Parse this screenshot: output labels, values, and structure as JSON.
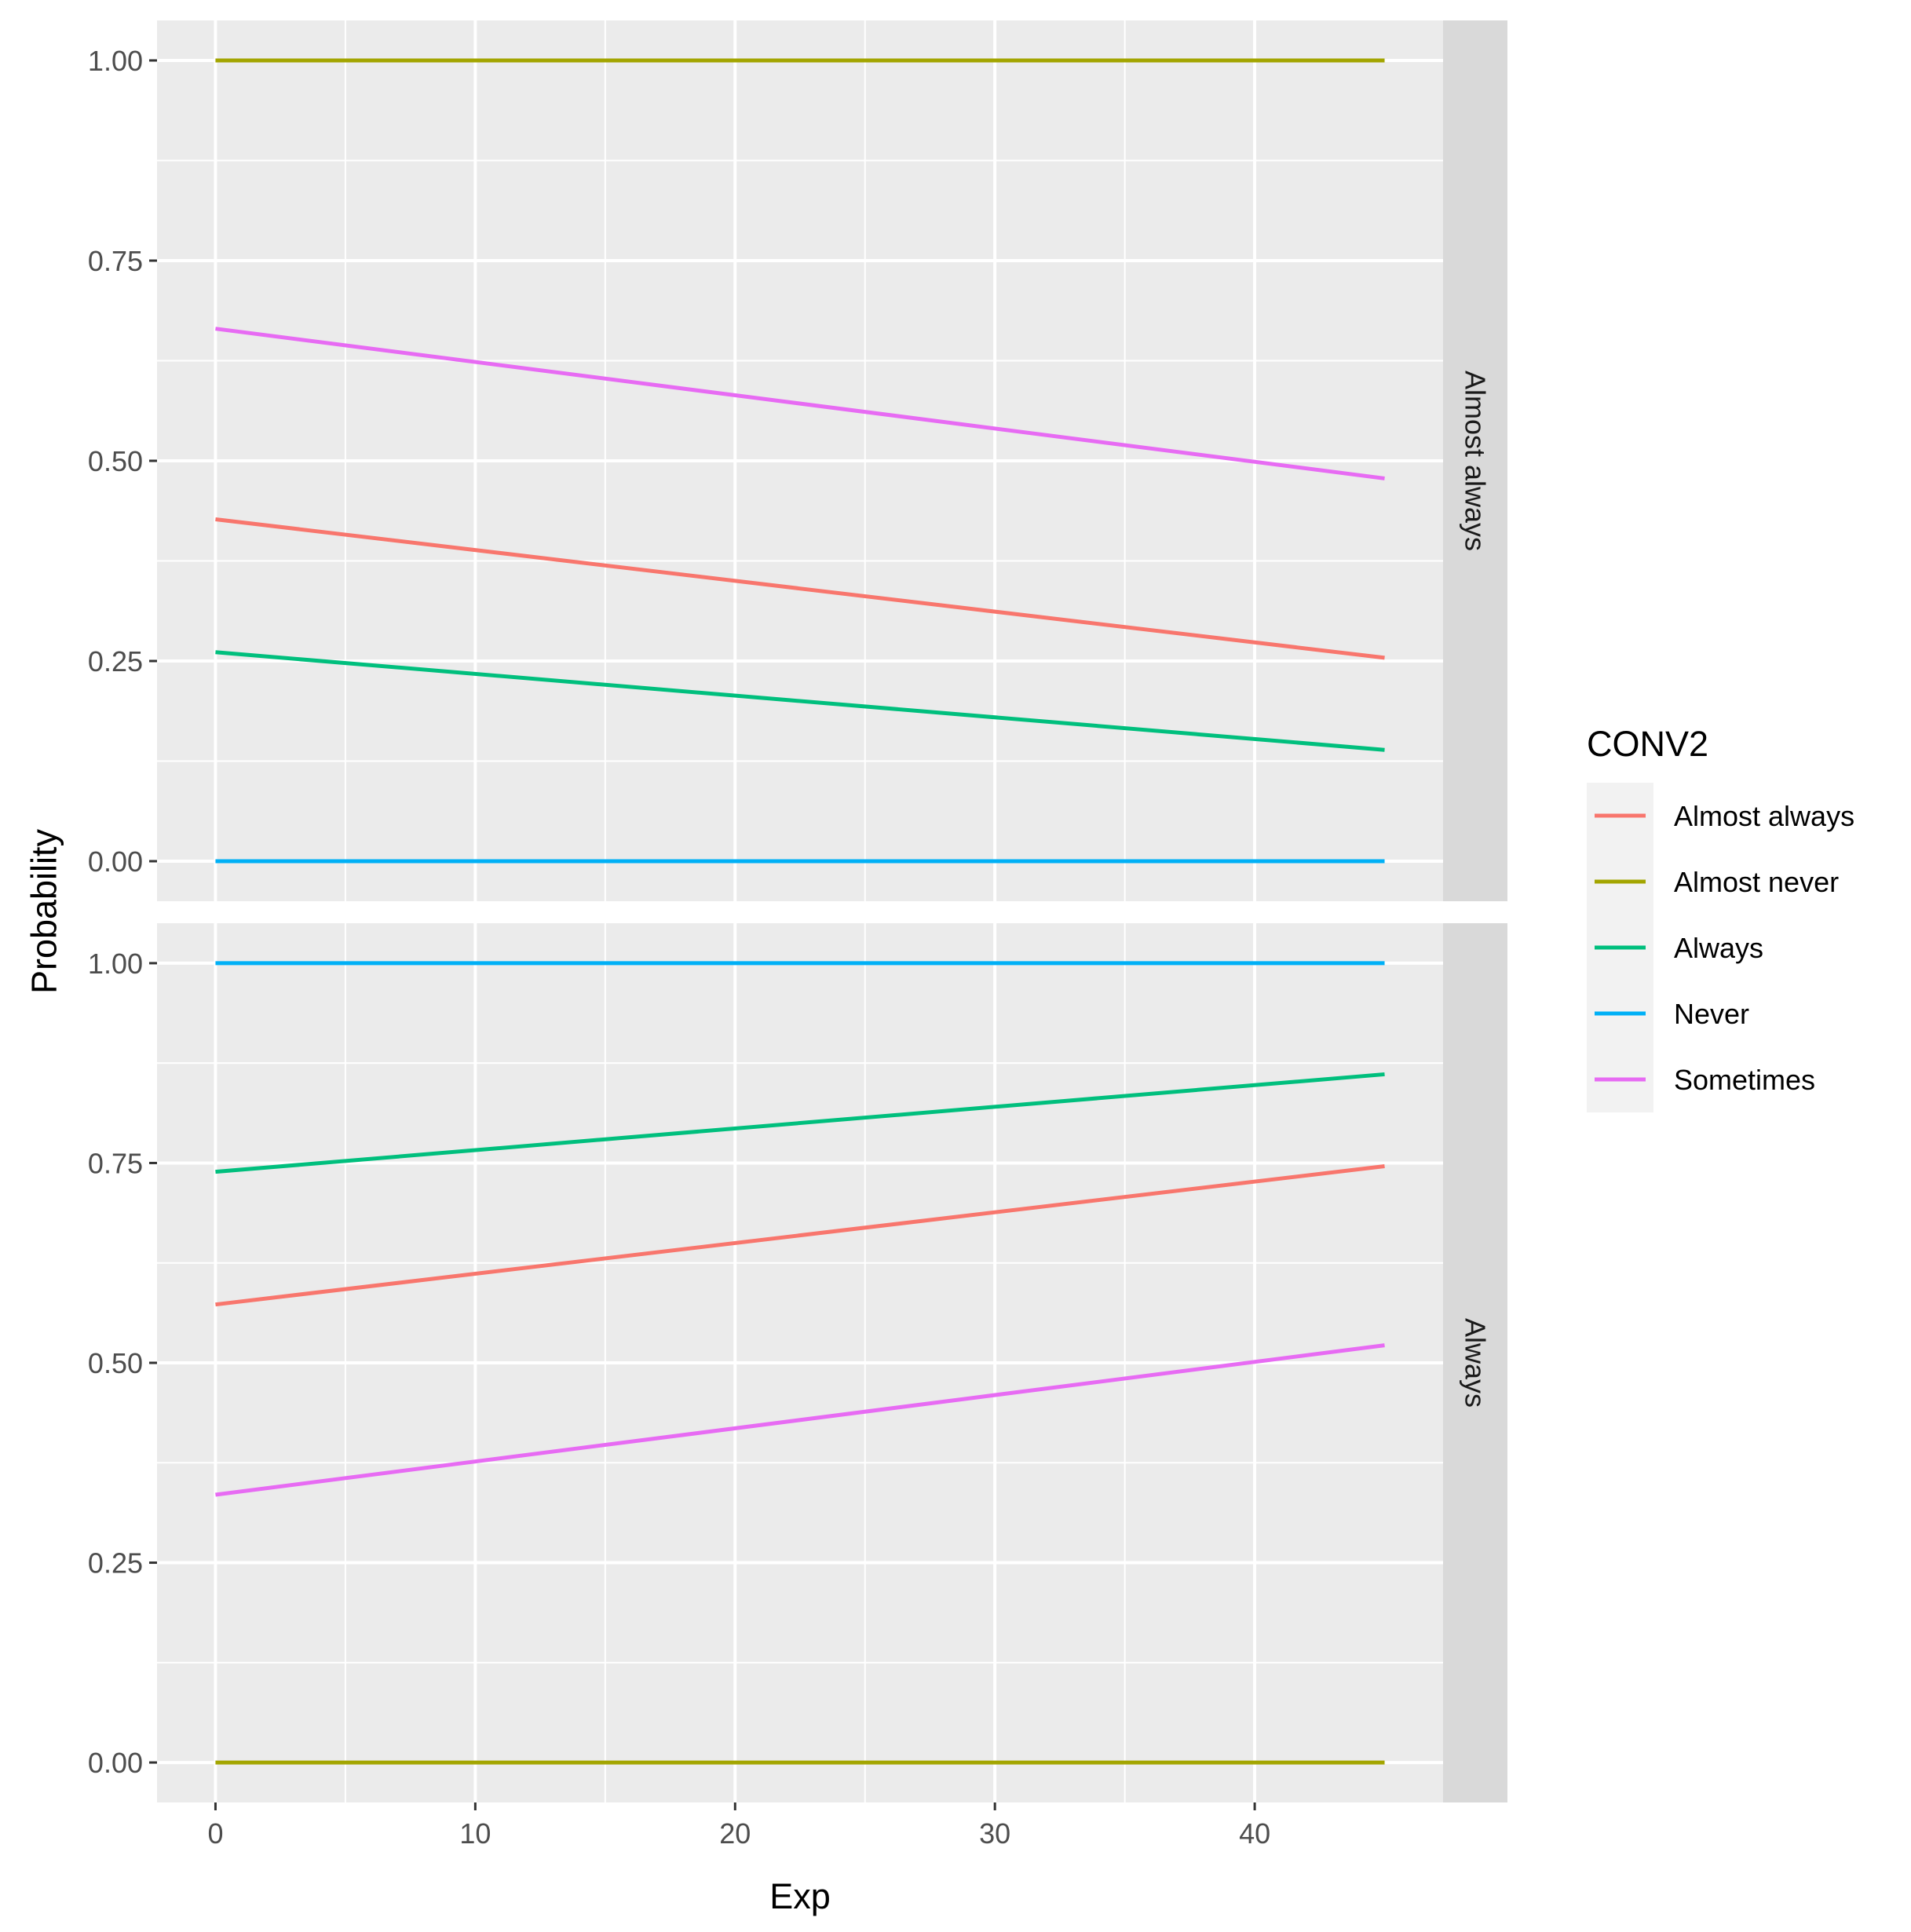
{
  "chart_data": {
    "type": "line",
    "xlabel": "Exp",
    "ylabel": "Probability",
    "xlim": [
      -2.25,
      47.25
    ],
    "ylim": [
      -0.05,
      1.05
    ],
    "x_ticks": [
      0,
      10,
      20,
      30,
      40
    ],
    "y_ticks": [
      0.0,
      0.25,
      0.5,
      0.75,
      1.0
    ],
    "y_tick_labels": [
      "0.00",
      "0.25",
      "0.50",
      "0.75",
      "1.00"
    ],
    "grid": true,
    "legend": {
      "title": "CONV2",
      "position": "right",
      "entries": [
        {
          "label": "Almost always",
          "color": "#F8766D"
        },
        {
          "label": "Almost never",
          "color": "#A3A500"
        },
        {
          "label": "Always",
          "color": "#00BF7D"
        },
        {
          "label": "Never",
          "color": "#00B0F6"
        },
        {
          "label": "Sometimes",
          "color": "#E76BF3"
        }
      ]
    },
    "x": [
      0,
      45
    ],
    "facets": [
      {
        "strip_label": "Almost always",
        "series": [
          {
            "name": "Almost never",
            "color": "#A3A500",
            "x": [
              0,
              45
            ],
            "values": [
              1.0,
              1.0
            ]
          },
          {
            "name": "Sometimes",
            "color": "#E76BF3",
            "x": [
              0,
              45
            ],
            "values": [
              0.665,
              0.478
            ]
          },
          {
            "name": "Almost always",
            "color": "#F8766D",
            "x": [
              0,
              45
            ],
            "values": [
              0.427,
              0.254
            ]
          },
          {
            "name": "Always",
            "color": "#00BF7D",
            "x": [
              0,
              45
            ],
            "values": [
              0.261,
              0.139
            ]
          },
          {
            "name": "Never",
            "color": "#00B0F6",
            "x": [
              0,
              45
            ],
            "values": [
              0.0,
              0.0
            ]
          }
        ]
      },
      {
        "strip_label": "Always",
        "series": [
          {
            "name": "Never",
            "color": "#00B0F6",
            "x": [
              0,
              45
            ],
            "values": [
              1.0,
              1.0
            ]
          },
          {
            "name": "Always",
            "color": "#00BF7D",
            "x": [
              0,
              45
            ],
            "values": [
              0.739,
              0.861
            ]
          },
          {
            "name": "Almost always",
            "color": "#F8766D",
            "x": [
              0,
              45
            ],
            "values": [
              0.573,
              0.746
            ]
          },
          {
            "name": "Sometimes",
            "color": "#E76BF3",
            "x": [
              0,
              45
            ],
            "values": [
              0.335,
              0.522
            ]
          },
          {
            "name": "Almost never",
            "color": "#A3A500",
            "x": [
              0,
              45
            ],
            "values": [
              0.0,
              0.0
            ]
          }
        ]
      }
    ]
  }
}
